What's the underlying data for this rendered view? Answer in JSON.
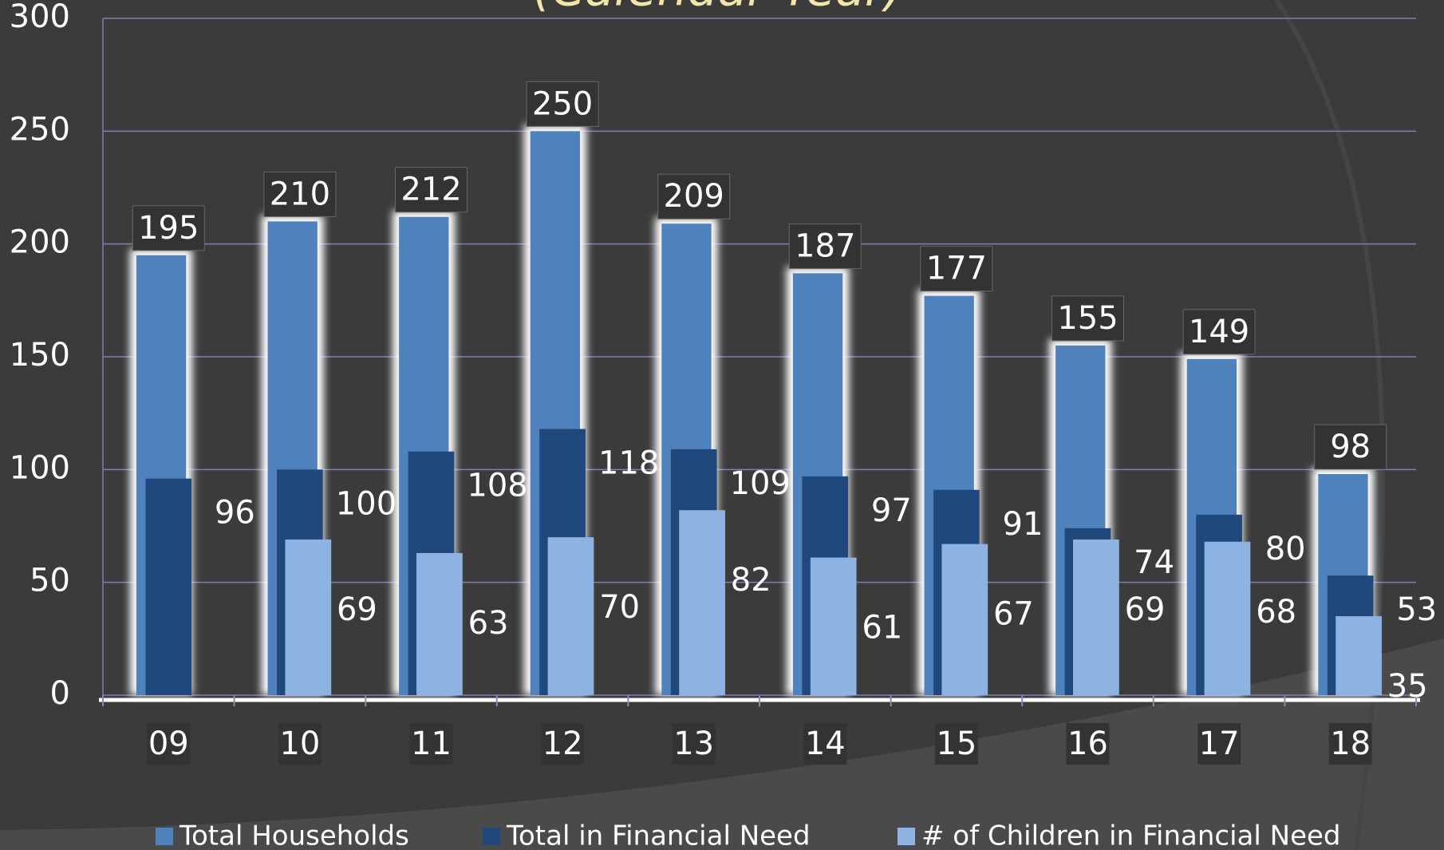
{
  "chart_data": {
    "type": "bar",
    "title": "(Calendar Year)",
    "categories": [
      "09",
      "10",
      "11",
      "12",
      "13",
      "14",
      "15",
      "16",
      "17",
      "18"
    ],
    "series": [
      {
        "name": "Total Households",
        "color": "#4f81bd",
        "values": [
          195,
          210,
          212,
          250,
          209,
          187,
          177,
          155,
          149,
          98
        ]
      },
      {
        "name": "Total in Financial Need",
        "color": "#1f497d",
        "values": [
          96,
          100,
          108,
          118,
          109,
          97,
          91,
          74,
          80,
          53
        ]
      },
      {
        "name": "# of Children in Financial Need",
        "color": "#8db3e2",
        "values": [
          null,
          69,
          63,
          70,
          82,
          61,
          67,
          69,
          68,
          35
        ]
      }
    ],
    "ylim": [
      0,
      300
    ],
    "yticks": [
      0,
      50,
      100,
      150,
      200,
      250,
      300
    ],
    "grid": true,
    "legend": "bottom"
  }
}
